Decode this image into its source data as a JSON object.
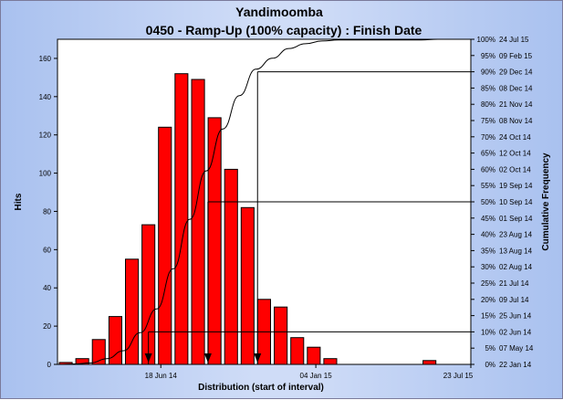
{
  "chart_data": {
    "type": "bar",
    "title": "Yandimoomba",
    "subtitle": "0450 - Ramp-Up (100% capacity) : Finish Date",
    "xlabel": "Distribution (start of interval)",
    "ylabel": "Hits",
    "y2label": "Cumulative Frequency",
    "ylim": [
      0,
      170
    ],
    "yticks": [
      0,
      20,
      40,
      60,
      80,
      100,
      120,
      140,
      160
    ],
    "x_ticks": [
      "18 Jun 14",
      "04 Jan 15",
      "23 Jul 15"
    ],
    "bins": 25,
    "values": [
      1,
      3,
      13,
      25,
      55,
      73,
      124,
      152,
      149,
      129,
      102,
      82,
      34,
      30,
      14,
      9,
      3,
      0,
      0,
      0,
      0,
      0,
      2,
      0,
      0
    ],
    "bar_color": "#ff0000",
    "cumulative_percent": [
      0.2,
      0.6,
      2.3,
      5.5,
      12.7,
      22.2,
      38.3,
      58.1,
      77.5,
      94.3,
      107.6,
      118.2,
      122.6,
      126.5,
      128.4,
      129.5,
      129.9,
      129.9,
      129.9,
      129.9,
      129.9,
      129.9,
      130.2,
      130.2,
      130.2
    ],
    "right_axis": [
      {
        "pct": "100%",
        "date": "24 Jul 15"
      },
      {
        "pct": "95%",
        "date": "09 Feb 15"
      },
      {
        "pct": "90%",
        "date": "29 Dec 14"
      },
      {
        "pct": "85%",
        "date": "08 Dec 14"
      },
      {
        "pct": "80%",
        "date": "21 Nov 14"
      },
      {
        "pct": "75%",
        "date": "08 Nov 14"
      },
      {
        "pct": "70%",
        "date": "24 Oct 14"
      },
      {
        "pct": "65%",
        "date": "12 Oct 14"
      },
      {
        "pct": "60%",
        "date": "02 Oct 14"
      },
      {
        "pct": "55%",
        "date": "19 Sep 14"
      },
      {
        "pct": "50%",
        "date": "10 Sep 14"
      },
      {
        "pct": "45%",
        "date": "01 Sep 14"
      },
      {
        "pct": "40%",
        "date": "23 Aug 14"
      },
      {
        "pct": "35%",
        "date": "13 Aug 14"
      },
      {
        "pct": "30%",
        "date": "02 Aug 14"
      },
      {
        "pct": "25%",
        "date": "21 Jul 14"
      },
      {
        "pct": "20%",
        "date": "09 Jul 14"
      },
      {
        "pct": "15%",
        "date": "25 Jun 14"
      },
      {
        "pct": "10%",
        "date": "02 Jun 14"
      },
      {
        "pct": "5%",
        "date": "07 May 14"
      },
      {
        "pct": "0%",
        "date": "22 Jan 14"
      }
    ],
    "percentile_markers": [
      {
        "pct": 10,
        "bin": 5.5
      },
      {
        "pct": 50,
        "bin": 9.1
      },
      {
        "pct": 90,
        "bin": 12.1
      }
    ],
    "grid": false,
    "legend": "none"
  }
}
